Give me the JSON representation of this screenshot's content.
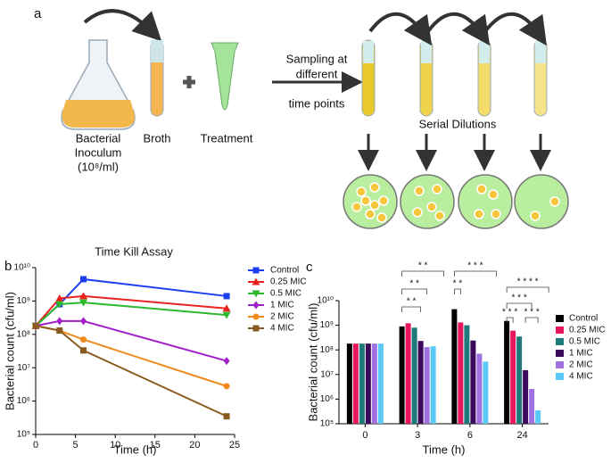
{
  "diagram": {
    "panel_labels": [
      "a",
      "b",
      "c"
    ],
    "inoculum": [
      "Bacterial",
      "Inoculum",
      "(10⁸/ml)"
    ],
    "broth": "Broth",
    "treatment": "Treatment",
    "sampling": [
      "Sampling at",
      "different",
      "time points"
    ],
    "serial_dilutions": "Serial Dilutions"
  },
  "chart_data": [
    {
      "type": "line",
      "title": "Time Kill Assay",
      "x_label": "Time (h)",
      "y_label": "Bacterial count (cfu/ml)",
      "x": [
        0,
        3,
        6,
        24
      ],
      "xlim": [
        0,
        25
      ],
      "xticks": [
        0,
        5,
        10,
        15,
        20,
        25
      ],
      "log_y": true,
      "ylim": [
        100000,
        10000000000
      ],
      "yticks": [
        {
          "value": 100000,
          "label": "10⁵"
        },
        {
          "value": 1000000,
          "label": "10⁶"
        },
        {
          "value": 10000000,
          "label": "10⁷"
        },
        {
          "value": 100000000,
          "label": "10⁸"
        },
        {
          "value": 1000000000,
          "label": "10⁹"
        },
        {
          "value": 10000000000,
          "label": "10¹⁰"
        }
      ],
      "legend": "right",
      "series": [
        {
          "name": "Control",
          "color": "#1a3ef0",
          "marker": "square",
          "values": [
            180000000,
            800000000,
            4500000000,
            1400000000
          ]
        },
        {
          "name": "0.25 MIC",
          "color": "#e8231f",
          "marker": "triangle",
          "values": [
            180000000,
            1200000000,
            1400000000,
            600000000
          ]
        },
        {
          "name": "0.5 MIC",
          "color": "#2db82d",
          "marker": "triangle-down",
          "values": [
            180000000,
            800000000,
            900000000,
            380000000
          ]
        },
        {
          "name": "1 MIC",
          "color": "#a01fc8",
          "marker": "diamond",
          "values": [
            180000000,
            250000000,
            250000000,
            16000000
          ]
        },
        {
          "name": "2 MIC",
          "color": "#f08a1c",
          "marker": "circle",
          "values": [
            180000000,
            130000000,
            70000000,
            2800000
          ]
        },
        {
          "name": "4 MIC",
          "color": "#8b5a1e",
          "marker": "square",
          "values": [
            180000000,
            130000000,
            33000000,
            350000
          ]
        }
      ]
    },
    {
      "type": "bar",
      "x_label": "Time (h)",
      "y_label": "Bacterial count (cfu/ml)",
      "categories": [
        "0",
        "3",
        "6",
        "24"
      ],
      "log_y": true,
      "ylim": [
        100000,
        10000000000
      ],
      "yticks": [
        {
          "value": 100000,
          "label": "10⁵"
        },
        {
          "value": 1000000,
          "label": "10⁶"
        },
        {
          "value": 10000000,
          "label": "10⁷"
        },
        {
          "value": 100000000,
          "label": "10⁸"
        },
        {
          "value": 1000000000,
          "label": "10⁹"
        },
        {
          "value": 10000000000,
          "label": "10¹⁰"
        }
      ],
      "legend": "right",
      "annotations": [
        "* *",
        "* *",
        "* *",
        "* * *",
        "* *",
        "* * * *",
        "* * *",
        "* * *",
        "* * *"
      ],
      "series": [
        {
          "name": "Control",
          "color": "#000000",
          "values": [
            180000000,
            900000000,
            4500000000,
            1500000000
          ]
        },
        {
          "name": "0.25 MIC",
          "color": "#e8175d",
          "values": [
            180000000,
            1200000000,
            1300000000,
            600000000
          ]
        },
        {
          "name": "0.5 MIC",
          "color": "#1e7a7a",
          "values": [
            180000000,
            800000000,
            1000000000,
            350000000
          ]
        },
        {
          "name": "1 MIC",
          "color": "#3b0a5a",
          "values": [
            180000000,
            230000000,
            240000000,
            15000000
          ]
        },
        {
          "name": "2 MIC",
          "color": "#a070e0",
          "values": [
            180000000,
            130000000,
            70000000,
            2600000
          ]
        },
        {
          "name": "4 MIC",
          "color": "#5bc8f5",
          "values": [
            180000000,
            140000000,
            33000000,
            350000
          ]
        }
      ]
    }
  ]
}
